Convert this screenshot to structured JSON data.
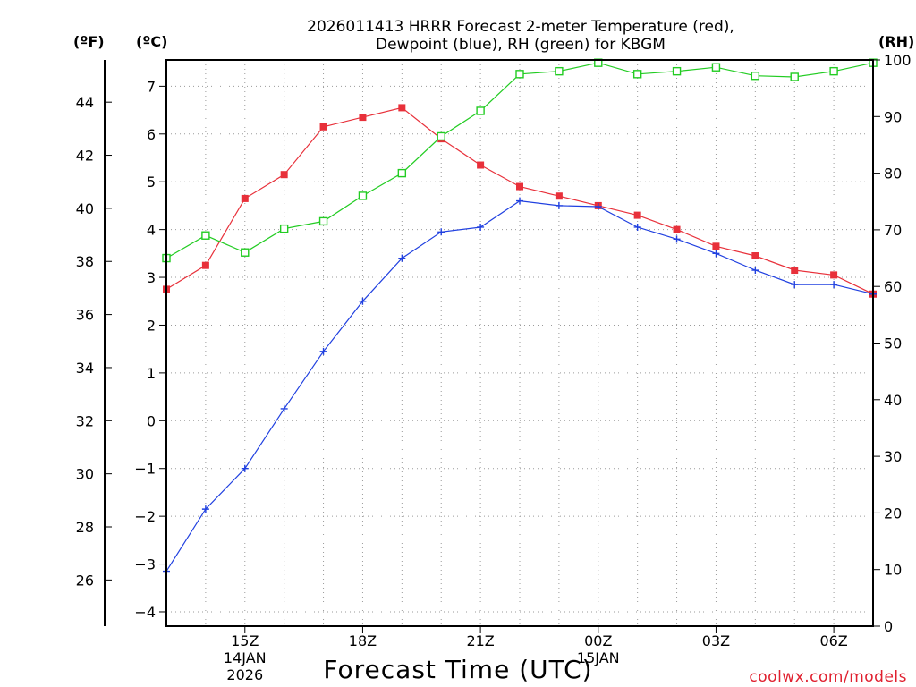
{
  "chart_data": {
    "type": "line",
    "title_lines": [
      "2026011413 HRRR Forecast 2-meter Temperature (red),",
      "Dewpoint (blue), RH (green) for KBGM"
    ],
    "xlabel": "Forecast Time (UTC)",
    "credit": "coolwx.com/models",
    "units": {
      "fahrenheit": "(ºF)",
      "celsius": "(ºC)",
      "rh": "(RH)"
    },
    "x": [
      13,
      14,
      15,
      16,
      17,
      18,
      19,
      20,
      21,
      22,
      23,
      24,
      25,
      26,
      27,
      28,
      29,
      30,
      31
    ],
    "xlim": [
      13,
      31
    ],
    "x_ticks": [
      {
        "x": 15,
        "label": "15Z",
        "date": "14JAN",
        "year": "2026"
      },
      {
        "x": 18,
        "label": "18Z"
      },
      {
        "x": 21,
        "label": "21Z"
      },
      {
        "x": 24,
        "label": "00Z",
        "date": "15JAN"
      },
      {
        "x": 27,
        "label": "03Z"
      },
      {
        "x": 30,
        "label": "06Z"
      }
    ],
    "celsius_axis": {
      "ylim": [
        -4.3,
        7.55
      ],
      "ticks": [
        -4,
        -3,
        -2,
        -1,
        0,
        1,
        2,
        3,
        4,
        5,
        6,
        7
      ]
    },
    "fahrenheit_axis": {
      "ticks": [
        26,
        28,
        30,
        32,
        34,
        36,
        38,
        40,
        42,
        44
      ]
    },
    "rh_axis": {
      "ylim": [
        0,
        100
      ],
      "ticks": [
        0,
        10,
        20,
        30,
        40,
        50,
        60,
        70,
        80,
        90,
        100
      ]
    },
    "series": [
      {
        "name": "Temperature",
        "axis": "celsius",
        "color": "#e8303a",
        "marker": "filled-square",
        "values": [
          2.75,
          3.25,
          4.65,
          5.15,
          6.15,
          6.35,
          6.55,
          5.9,
          5.35,
          4.9,
          4.7,
          4.5,
          4.3,
          4.0,
          3.65,
          3.45,
          3.15,
          3.05,
          2.65
        ]
      },
      {
        "name": "Dewpoint",
        "axis": "celsius",
        "color": "#2040e0",
        "marker": "plus",
        "values": [
          -3.15,
          -1.85,
          -1.0,
          0.25,
          1.45,
          2.5,
          3.4,
          3.95,
          4.05,
          4.6,
          4.5,
          4.48,
          4.05,
          3.8,
          3.5,
          3.15,
          2.85,
          2.85,
          2.65
        ]
      },
      {
        "name": "RH",
        "axis": "rh",
        "color": "#22cc22",
        "marker": "open-square",
        "values": [
          65,
          69,
          66,
          70.2,
          71.5,
          76,
          80,
          86.5,
          91,
          97.5,
          98,
          99.5,
          97.5,
          98,
          98.7,
          97.2,
          97,
          98,
          99.5
        ]
      }
    ]
  }
}
